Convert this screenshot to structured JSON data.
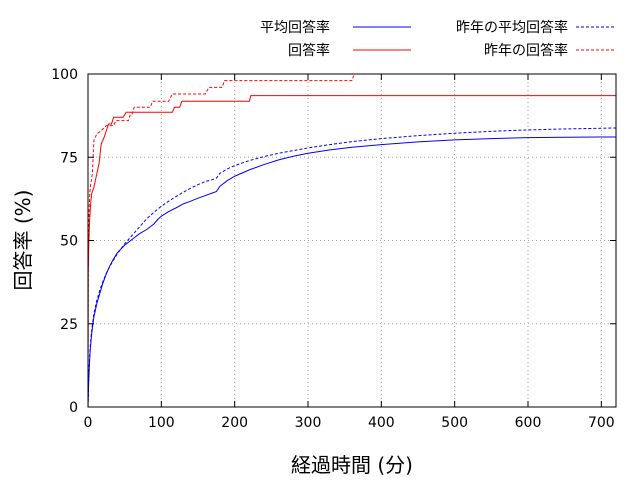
{
  "chart_data": {
    "type": "line",
    "xlabel": "経過時間 (分)",
    "ylabel": "回答率 (%)",
    "xlim": [
      0,
      720
    ],
    "ylim": [
      0,
      100
    ],
    "xticks": [
      0,
      100,
      200,
      300,
      400,
      500,
      600,
      700
    ],
    "yticks": [
      0,
      25,
      50,
      75,
      100
    ],
    "grid": true,
    "legend_position": "top",
    "series": [
      {
        "name": "平均回答率",
        "color": "#0000ff",
        "dash": "solid",
        "points": [
          [
            0,
            0
          ],
          [
            1,
            8
          ],
          [
            2,
            13
          ],
          [
            3,
            17
          ],
          [
            5,
            22
          ],
          [
            8,
            27
          ],
          [
            12,
            31
          ],
          [
            16,
            34
          ],
          [
            20,
            37
          ],
          [
            25,
            40
          ],
          [
            30,
            42.5
          ],
          [
            35,
            44.5
          ],
          [
            40,
            46.3
          ],
          [
            50,
            48.6
          ],
          [
            60,
            50.3
          ],
          [
            70,
            52
          ],
          [
            80,
            53.3
          ],
          [
            90,
            55
          ],
          [
            95,
            56.3
          ],
          [
            100,
            57.3
          ],
          [
            110,
            58.7
          ],
          [
            120,
            59.8
          ],
          [
            130,
            61
          ],
          [
            140,
            61.8
          ],
          [
            150,
            62.7
          ],
          [
            160,
            63.5
          ],
          [
            170,
            64.3
          ],
          [
            175,
            64.7
          ],
          [
            180,
            66.3
          ],
          [
            190,
            68
          ],
          [
            200,
            69.3
          ],
          [
            220,
            71.2
          ],
          [
            240,
            72.8
          ],
          [
            260,
            74.2
          ],
          [
            280,
            75.3
          ],
          [
            300,
            76.2
          ],
          [
            330,
            77.2
          ],
          [
            360,
            78
          ],
          [
            400,
            78.8
          ],
          [
            450,
            79.6
          ],
          [
            500,
            80.2
          ],
          [
            550,
            80.6
          ],
          [
            600,
            80.9
          ],
          [
            650,
            81
          ],
          [
            700,
            81.1
          ],
          [
            720,
            81.1
          ]
        ]
      },
      {
        "name": "回答率",
        "color": "#ff0000",
        "dash": "solid",
        "points": [
          [
            0,
            0
          ],
          [
            0.3,
            40
          ],
          [
            1,
            48
          ],
          [
            2,
            55
          ],
          [
            3,
            59
          ],
          [
            4,
            62
          ],
          [
            5,
            64
          ],
          [
            8,
            66
          ],
          [
            12,
            70
          ],
          [
            15,
            73
          ],
          [
            18,
            79
          ],
          [
            22,
            81
          ],
          [
            25,
            83
          ],
          [
            28,
            85
          ],
          [
            32,
            85
          ],
          [
            35,
            87
          ],
          [
            48,
            87
          ],
          [
            52,
            88.5
          ],
          [
            115,
            88.5
          ],
          [
            118,
            90
          ],
          [
            125,
            90
          ],
          [
            128,
            91.8
          ],
          [
            220,
            91.8
          ],
          [
            222,
            93.5
          ],
          [
            720,
            93.5
          ]
        ]
      },
      {
        "name": "昨年の平均回答率",
        "color": "#0000ff",
        "dash": "dotted",
        "points": [
          [
            0,
            0
          ],
          [
            1,
            9
          ],
          [
            2,
            14
          ],
          [
            3,
            18
          ],
          [
            5,
            23
          ],
          [
            8,
            28
          ],
          [
            12,
            32
          ],
          [
            16,
            35
          ],
          [
            20,
            37.5
          ],
          [
            25,
            40.2
          ],
          [
            30,
            42.3
          ],
          [
            35,
            44.2
          ],
          [
            40,
            46
          ],
          [
            50,
            49
          ],
          [
            60,
            51.5
          ],
          [
            70,
            54
          ],
          [
            80,
            56.5
          ],
          [
            90,
            58.5
          ],
          [
            100,
            60.3
          ],
          [
            110,
            61.8
          ],
          [
            120,
            63.2
          ],
          [
            130,
            64.5
          ],
          [
            140,
            65.7
          ],
          [
            150,
            66.8
          ],
          [
            160,
            67.7
          ],
          [
            170,
            68.3
          ],
          [
            175,
            68.7
          ],
          [
            180,
            70.2
          ],
          [
            190,
            71.5
          ],
          [
            200,
            72.5
          ],
          [
            220,
            74
          ],
          [
            240,
            75.2
          ],
          [
            260,
            76.2
          ],
          [
            280,
            77
          ],
          [
            300,
            77.8
          ],
          [
            330,
            78.8
          ],
          [
            360,
            79.7
          ],
          [
            400,
            80.6
          ],
          [
            450,
            81.5
          ],
          [
            500,
            82.2
          ],
          [
            550,
            82.8
          ],
          [
            600,
            83.2
          ],
          [
            650,
            83.5
          ],
          [
            700,
            83.7
          ],
          [
            720,
            83.8
          ]
        ]
      },
      {
        "name": "昨年の回答率",
        "color": "#ff0000",
        "dash": "dotted",
        "points": [
          [
            0,
            0
          ],
          [
            0.3,
            45
          ],
          [
            1,
            55
          ],
          [
            2,
            62
          ],
          [
            3,
            66
          ],
          [
            6,
            70
          ],
          [
            8,
            80
          ],
          [
            12,
            82
          ],
          [
            18,
            83
          ],
          [
            25,
            84.5
          ],
          [
            35,
            84.5
          ],
          [
            38,
            86
          ],
          [
            55,
            86
          ],
          [
            58,
            88
          ],
          [
            60,
            88
          ],
          [
            63,
            90
          ],
          [
            85,
            90
          ],
          [
            88,
            91.8
          ],
          [
            110,
            91.8
          ],
          [
            115,
            94
          ],
          [
            160,
            94
          ],
          [
            165,
            96
          ],
          [
            183,
            96
          ],
          [
            186,
            98
          ],
          [
            360,
            98
          ],
          [
            363,
            100
          ],
          [
            720,
            100
          ]
        ]
      }
    ]
  }
}
